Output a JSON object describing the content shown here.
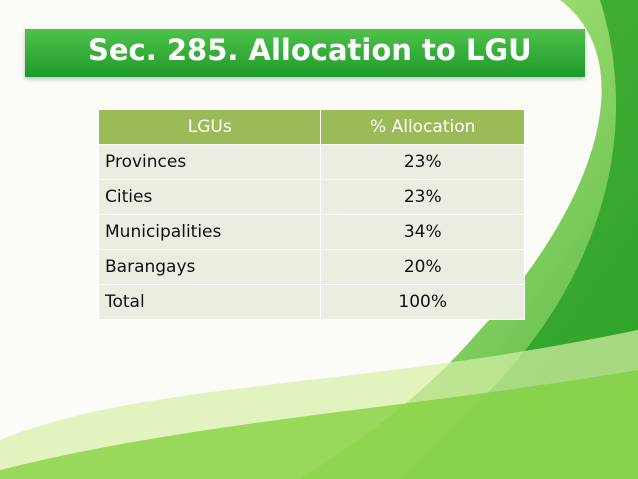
{
  "header": {
    "title": "Sec. 285. Allocation to LGU"
  },
  "table": {
    "columns": [
      "LGUs",
      "% Allocation"
    ],
    "rows": [
      [
        "Provinces",
        "23%"
      ],
      [
        "Cities",
        "23%"
      ],
      [
        "Municipalities",
        "34%"
      ],
      [
        "Barangays",
        "20%"
      ],
      [
        "Total",
        "100%"
      ]
    ]
  }
}
